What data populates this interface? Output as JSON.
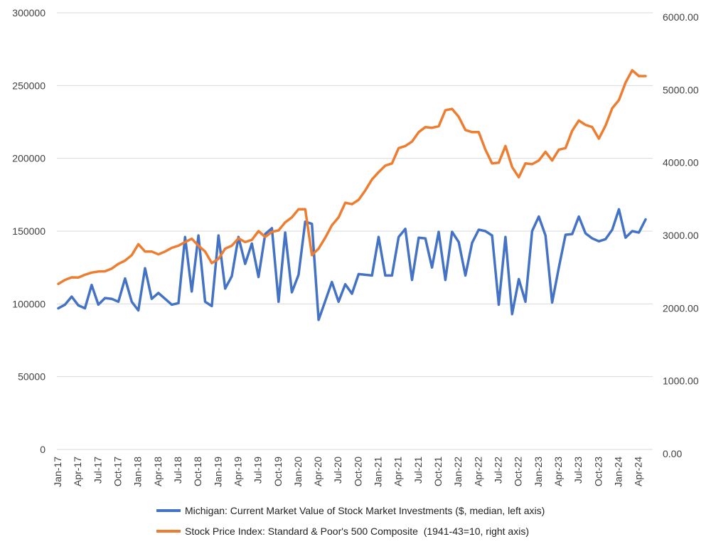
{
  "chart_data": {
    "type": "line",
    "title": "",
    "x": [
      "Jan-17",
      "Feb-17",
      "Mar-17",
      "Apr-17",
      "May-17",
      "Jun-17",
      "Jul-17",
      "Aug-17",
      "Sep-17",
      "Oct-17",
      "Nov-17",
      "Dec-17",
      "Jan-18",
      "Feb-18",
      "Mar-18",
      "Apr-18",
      "May-18",
      "Jun-18",
      "Jul-18",
      "Aug-18",
      "Sep-18",
      "Oct-18",
      "Nov-18",
      "Dec-18",
      "Jan-19",
      "Feb-19",
      "Mar-19",
      "Apr-19",
      "May-19",
      "Jun-19",
      "Jul-19",
      "Aug-19",
      "Sep-19",
      "Oct-19",
      "Nov-19",
      "Dec-19",
      "Jan-20",
      "Feb-20",
      "Mar-20",
      "Apr-20",
      "May-20",
      "Jun-20",
      "Jul-20",
      "Aug-20",
      "Sep-20",
      "Oct-20",
      "Nov-20",
      "Dec-20",
      "Jan-21",
      "Feb-21",
      "Mar-21",
      "Apr-21",
      "May-21",
      "Jun-21",
      "Jul-21",
      "Aug-21",
      "Sep-21",
      "Oct-21",
      "Nov-21",
      "Dec-21",
      "Jan-22",
      "Feb-22",
      "Mar-22",
      "Apr-22",
      "May-22",
      "Jun-22",
      "Jul-22",
      "Aug-22",
      "Sep-22",
      "Oct-22",
      "Nov-22",
      "Dec-22",
      "Jan-23",
      "Feb-23",
      "Mar-23",
      "Apr-23",
      "May-23",
      "Jun-23",
      "Jul-23",
      "Aug-23",
      "Sep-23",
      "Oct-23",
      "Nov-23",
      "Dec-23",
      "Jan-24",
      "Feb-24",
      "Mar-24",
      "Apr-24",
      "May-24"
    ],
    "x_tick_labels": [
      "Jan-17",
      "Apr-17",
      "Jul-17",
      "Oct-17",
      "Jan-18",
      "Apr-18",
      "Jul-18",
      "Oct-18",
      "Jan-19",
      "Apr-19",
      "Jul-19",
      "Oct-19",
      "Jan-20",
      "Apr-20",
      "Jul-20",
      "Oct-20",
      "Jan-21",
      "Apr-21",
      "Jul-21",
      "Oct-21",
      "Jan-22",
      "Apr-22",
      "Jul-22",
      "Oct-22",
      "Jan-23",
      "Apr-23",
      "Jul-23",
      "Oct-23",
      "Jan-24",
      "Apr-24"
    ],
    "y_left": {
      "ylim": [
        0,
        300000
      ],
      "ticks": [
        "0",
        "50000",
        "100000",
        "150000",
        "200000",
        "250000",
        "300000"
      ]
    },
    "y_right": {
      "ylim": [
        0,
        6000
      ],
      "ticks": [
        "0.00",
        "1000.00",
        "2000.00",
        "3000.00",
        "4000.00",
        "5000.00",
        "6000.00"
      ]
    },
    "grid": true,
    "legend_position": "bottom",
    "series": [
      {
        "name": "Michigan: Current Market Value of Stock Market Investments ($, median, left axis)",
        "axis": "left",
        "color": "#4472C4",
        "values": [
          97000,
          99500,
          105000,
          99000,
          97000,
          113000,
          99500,
          104000,
          103500,
          101500,
          117500,
          101500,
          95500,
          124500,
          103500,
          107500,
          103500,
          99500,
          100500,
          146000,
          108500,
          147000,
          101500,
          98500,
          147000,
          110500,
          119000,
          146000,
          127500,
          141500,
          118500,
          148000,
          152000,
          101500,
          149000,
          108000,
          120000,
          156500,
          155000,
          89000,
          102000,
          115000,
          101500,
          113500,
          107000,
          120500,
          120000,
          119500,
          146000,
          119500,
          119500,
          146000,
          151500,
          116500,
          145500,
          145000,
          125000,
          149500,
          116500,
          149500,
          142500,
          119500,
          142000,
          151000,
          150000,
          147000,
          99500,
          146000,
          93000,
          117000,
          101500,
          150000,
          160000,
          147000,
          101000,
          125000,
          147500,
          148000,
          160000,
          148500,
          145000,
          143000,
          144500,
          151000,
          165000,
          145500,
          150000,
          149000,
          158000
        ]
      },
      {
        "name": "Stock Price Index: Standard & Poor's 500 Composite  (1941-43=10, right axis)",
        "axis": "right",
        "color": "#ED7D31",
        "values": [
          2275,
          2330,
          2365,
          2362,
          2400,
          2430,
          2445,
          2448,
          2485,
          2550,
          2595,
          2670,
          2820,
          2720,
          2720,
          2680,
          2720,
          2770,
          2800,
          2850,
          2895,
          2800,
          2720,
          2560,
          2620,
          2760,
          2800,
          2900,
          2850,
          2880,
          3000,
          2920,
          2990,
          3010,
          3120,
          3190,
          3300,
          3300,
          2670,
          2760,
          2910,
          3080,
          3190,
          3390,
          3370,
          3430,
          3560,
          3710,
          3810,
          3900,
          3930,
          4140,
          4170,
          4230,
          4360,
          4430,
          4420,
          4440,
          4660,
          4680,
          4570,
          4390,
          4360,
          4360,
          4120,
          3930,
          3940,
          4170,
          3880,
          3740,
          3930,
          3920,
          3970,
          4090,
          3970,
          4120,
          4140,
          4380,
          4520,
          4460,
          4430,
          4270,
          4450,
          4690,
          4800,
          5040,
          5210,
          5130,
          5130
        ]
      }
    ]
  }
}
